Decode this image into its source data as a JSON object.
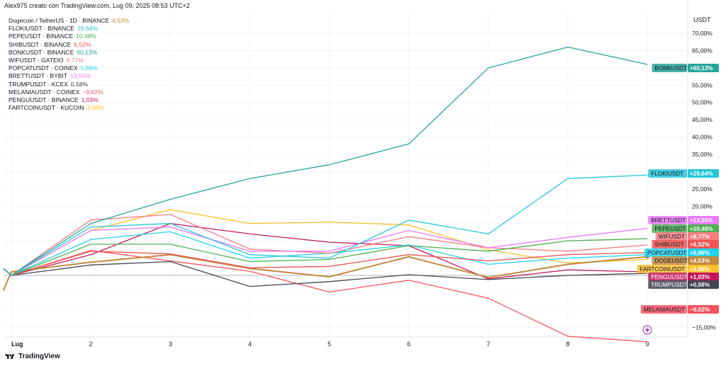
{
  "header": {
    "text": "Alex975 creato con TradingView.com, Lug 09, 2025 08:53 UTC+2"
  },
  "footer": {
    "brand": "TradingView"
  },
  "legend": [
    {
      "label": "Dogecoin / TetherUS · 1D · BINANCE",
      "value": "4,53%",
      "color": "#c08a3e"
    },
    {
      "label": "FLOKIUSDT · BINANCE",
      "value": "29,64%",
      "color": "#26c6da"
    },
    {
      "label": "PEPEUSDT · BINANCE",
      "value": "10,48%",
      "color": "#4caf50"
    },
    {
      "label": "SHIBUSDT · BINANCE",
      "value": "6,52%",
      "color": "#ef5350"
    },
    {
      "label": "BONKUSDT · BINANCE",
      "value": "60,13%",
      "color": "#26a69a"
    },
    {
      "label": "WIFUSDT · GATEIO",
      "value": "8,77%",
      "color": "#f77c80"
    },
    {
      "label": "POPCATUSDT · COINEX",
      "value": "5,96%",
      "color": "#22d3ee"
    },
    {
      "label": "BRETTUSDT · BYBIT",
      "value": "13,55%",
      "color": "#e879f9"
    },
    {
      "label": "TRUMPUSDT · KCEX",
      "value": "0,58%",
      "color": "#434651"
    },
    {
      "label": "MELANIAUSDT · COINEX",
      "value": "−9,62%",
      "color": "#f7525f"
    },
    {
      "label": "PENGUUSDT · BINANCE",
      "value": "1,03%",
      "color": "#c2185b"
    },
    {
      "label": "FARTCOINUSDT · KUCOIN",
      "value": "3,88%",
      "color": "#fbc02d"
    }
  ],
  "chart_data": {
    "type": "line",
    "currency": "USDT",
    "x_labels": [
      "Lug",
      "2",
      "3",
      "4",
      "5",
      "6",
      "7",
      "8",
      "9"
    ],
    "y_ticks": [
      {
        "v": 70,
        "label": "70,00%"
      },
      {
        "v": 65,
        "label": "65,00%"
      },
      {
        "v": 60,
        "label": "60,00%"
      },
      {
        "v": 55,
        "label": "55,00%"
      },
      {
        "v": 50,
        "label": "50,00%"
      },
      {
        "v": 45,
        "label": "45,00%"
      },
      {
        "v": 40,
        "label": "40,00%"
      },
      {
        "v": 35,
        "label": "35,00%"
      },
      {
        "v": 30,
        "label": "30,00%"
      },
      {
        "v": 25,
        "label": "25,00%"
      },
      {
        "v": 20,
        "label": "20,00%"
      },
      {
        "v": -15,
        "label": "−15,00%"
      }
    ],
    "ylim": [
      -19,
      72
    ],
    "x_range": [
      -0.08,
      8.8
    ],
    "series": [
      {
        "name": "BONKUSDT",
        "tag": "+60,13%",
        "color": "#26a69a",
        "last": 60.13,
        "x": [
          -0.2,
          0,
          1,
          2,
          3,
          4,
          5,
          6,
          7,
          8
        ],
        "y": [
          1,
          0,
          7.5,
          11,
          14,
          16,
          19,
          30,
          33,
          30.5
        ],
        "yscaled": true
      },
      {
        "name": "FLOKIUSDT",
        "tag": "+29,64%",
        "color": "#26c6da",
        "last": 29.64,
        "x": [
          -0.2,
          0,
          1,
          2,
          3,
          4,
          5,
          6,
          7,
          8
        ],
        "y": [
          1,
          0,
          7,
          7.5,
          3,
          2.5,
          8,
          6,
          14,
          14.5
        ],
        "yscaled": true
      },
      {
        "name": "BRETTUSDT",
        "tag": "+13,55%",
        "color": "#e879f9",
        "last": 13.55,
        "x": [
          -0.2,
          0,
          1,
          2,
          3,
          4,
          5,
          6,
          7,
          8
        ],
        "y": [
          1,
          0,
          6.5,
          7,
          3.5,
          3.5,
          6.5,
          4,
          5.5,
          6.8
        ],
        "yscaled": true
      },
      {
        "name": "PEPEUSDT",
        "tag": "+10,48%",
        "color": "#4caf50",
        "last": 10.48,
        "x": [
          -0.2,
          0,
          1,
          2,
          3,
          4,
          5,
          6,
          7,
          8
        ],
        "y": [
          1,
          0,
          4.5,
          4.5,
          2,
          2.3,
          4.3,
          3.5,
          5,
          5.3
        ],
        "yscaled": true
      },
      {
        "name": "WIFUSDT",
        "tag": "+8,77%",
        "color": "#f77c80",
        "last": 8.77,
        "x": [
          -0.2,
          0,
          1,
          2,
          3,
          4,
          5,
          6,
          7,
          8
        ],
        "y": [
          1,
          0,
          8,
          8.8,
          3.8,
          3.2,
          5.6,
          4,
          3.5,
          4.4
        ],
        "yscaled": true
      },
      {
        "name": "SHIBUSDT",
        "tag": "+6,52%",
        "color": "#ef5350",
        "last": 6.52,
        "x": [
          -0.2,
          0,
          1,
          2,
          3,
          4,
          5,
          6,
          7,
          8
        ],
        "y": [
          1,
          0,
          3.5,
          3.1,
          1.1,
          1.3,
          3,
          2.1,
          3,
          3.3
        ],
        "yscaled": true
      },
      {
        "name": "POPCATUSDT",
        "tag": "+5,96%",
        "color": "#22d3ee",
        "last": 5.96,
        "x": [
          -0.2,
          0,
          1,
          2,
          3,
          4,
          5,
          6,
          7,
          8
        ],
        "y": [
          1,
          0,
          5.2,
          6.3,
          2.5,
          3.2,
          4.4,
          1.6,
          2.5,
          3
        ],
        "yscaled": true
      },
      {
        "name": "DOGEUSDT",
        "tag": "+4,53%",
        "color": "#c08a3e",
        "last": 4.53,
        "x": [
          -0.2,
          0,
          1,
          2,
          3,
          4,
          5,
          6,
          7,
          8
        ],
        "y": [
          -2.2,
          0.5,
          1.9,
          3,
          1,
          -0.2,
          2.7,
          -0.3,
          1.6,
          2.7
        ],
        "yscaled": true
      },
      {
        "name": "FARTCOINUSDT",
        "tag": "+3,88%",
        "color": "#fbc02d",
        "last": 3.88,
        "x": [
          -0.2,
          0,
          1,
          2,
          3,
          4,
          5,
          6,
          7,
          8
        ],
        "y": [
          1,
          0,
          6.5,
          9.5,
          7.5,
          7.7,
          7.3,
          3.7,
          1.8,
          2.3
        ],
        "yscaled": true
      },
      {
        "name": "PENGUUSDT",
        "tag": "+1,03%",
        "color": "#c2185b",
        "last": 1.03,
        "x": [
          -0.2,
          0,
          1,
          2,
          3,
          4,
          5,
          6,
          7,
          8
        ],
        "y": [
          1,
          0,
          3,
          7.5,
          6,
          4.8,
          4.3,
          -0.5,
          0.8,
          0.5
        ],
        "yscaled": true
      },
      {
        "name": "TRUMPUSDT",
        "tag": "+0,58%",
        "color": "#434651",
        "last": 0.58,
        "x": [
          -0.2,
          0,
          1,
          2,
          3,
          4,
          5,
          6,
          7,
          8
        ],
        "y": [
          1,
          0,
          1.5,
          2,
          -1.6,
          -0.9,
          0.1,
          -0.6,
          0,
          0.3
        ],
        "yscaled": true
      },
      {
        "name": "MELANIAUSDT",
        "tag": "−9,62%",
        "color": "#f7525f",
        "last": -9.62,
        "x": [
          -0.2,
          0,
          1,
          2,
          3,
          4,
          5,
          6,
          7,
          8
        ],
        "y": [
          1,
          0,
          3.6,
          2.1,
          0.6,
          -2.4,
          -0.7,
          -3.3,
          -8.8,
          -9.6
        ],
        "yscaled": true
      }
    ]
  }
}
